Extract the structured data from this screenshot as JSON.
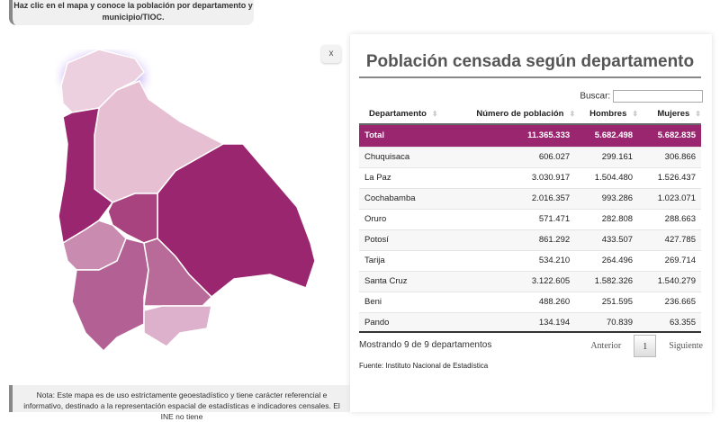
{
  "top_note": "Haz clic en el mapa y conoce la población por departamento y municipio/TIOC.",
  "bottom_note": "Nota: Este mapa es de uso estrictamente geoestadístico y tiene carácter referencial e informativo, destinado a la representación espacial de estadísticas e indicadores censales. El INE no tiene",
  "close_label": "x",
  "colors": {
    "accent": "#9b2670",
    "light": "#e8c3d7"
  },
  "title": "Población censada según departamento",
  "search_label": "Buscar:",
  "search_value": "",
  "columns": [
    "Departamento",
    "Número de población",
    "Hombres",
    "Mujeres"
  ],
  "total": [
    "Total",
    "11.365.333",
    "5.682.498",
    "5.682.835"
  ],
  "rows": [
    [
      "Chuquisaca",
      "606.027",
      "299.161",
      "306.866"
    ],
    [
      "La Paz",
      "3.030.917",
      "1.504.480",
      "1.526.437"
    ],
    [
      "Cochabamba",
      "2.016.357",
      "993.286",
      "1.023.071"
    ],
    [
      "Oruro",
      "571.471",
      "282.808",
      "288.663"
    ],
    [
      "Potosí",
      "861.292",
      "433.507",
      "427.785"
    ],
    [
      "Tarija",
      "534.210",
      "264.496",
      "269.714"
    ],
    [
      "Santa Cruz",
      "3.122.605",
      "1.582.326",
      "1.540.279"
    ],
    [
      "Beni",
      "488.260",
      "251.595",
      "236.665"
    ],
    [
      "Pando",
      "134.194",
      "70.839",
      "63.355"
    ]
  ],
  "info": "Mostrando 9 de 9 departamentos",
  "prev": "Anterior",
  "page": "1",
  "next": "Siguiente",
  "source": "Fuente: Instituto Nacional de Estadística"
}
